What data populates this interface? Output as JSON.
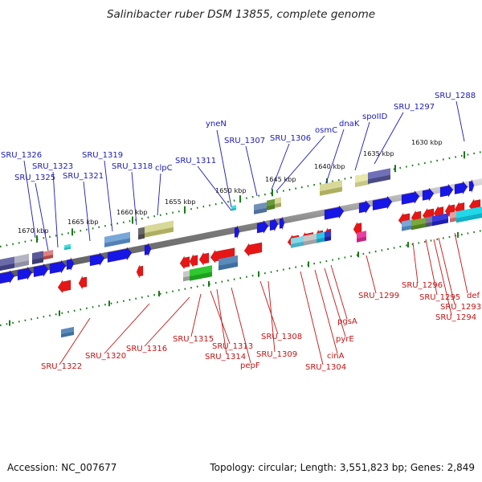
{
  "title": "Salinibacter ruber DSM 13855, complete genome",
  "footer": {
    "accession": "Accession: NC_007677",
    "topology": "Topology: circular; Length: 3,551,823 bp; Genes: 2,849"
  },
  "scale_labels": [
    "1630 kbp",
    "1635 kbp",
    "1640 kbp",
    "1645 kbp",
    "1650 kbp",
    "1655 kbp",
    "1660 kbp",
    "1665 kbp",
    "1670 kbp"
  ],
  "top_labels": [
    "SRU_1326",
    "SRU_1323",
    "SRU_1325",
    "SRU_1321",
    "SRU_1319",
    "SRU_1318",
    "clpC",
    "SRU_1311",
    "yneN",
    "SRU_1307",
    "SRU_1306",
    "osmC",
    "dnaK",
    "spoIID",
    "SRU_1297",
    "SRU_1288"
  ],
  "bottom_labels": [
    "SRU_1322",
    "SRU_1320",
    "SRU_1316",
    "SRU_1315",
    "SRU_1313",
    "SRU_1314",
    "pepF",
    "SRU_1308",
    "SRU_1309",
    "cinA",
    "SRU_1304",
    "pyrE",
    "pgsA",
    "SRU_1299",
    "SRU_1296",
    "SRU_1295",
    "def",
    "SRU_1293",
    "SRU_1294"
  ],
  "colors": {
    "forward_gene": "#1616e6",
    "reverse_gene": "#e61616",
    "backbone": "#8c8c8c",
    "tick": "#1a7a1a",
    "label_forward": "#1a1ab4",
    "label_reverse": "#c41414"
  }
}
